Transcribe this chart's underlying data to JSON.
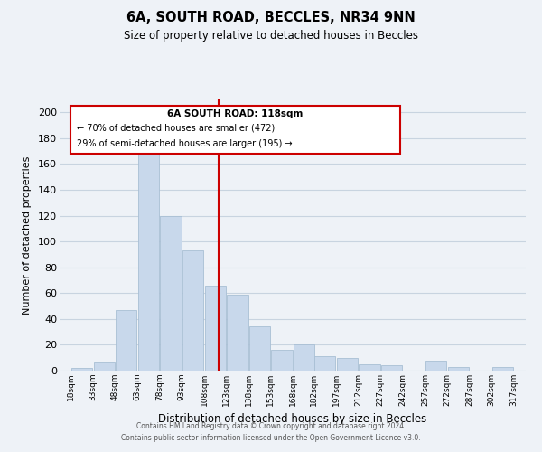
{
  "title": "6A, SOUTH ROAD, BECCLES, NR34 9NN",
  "subtitle": "Size of property relative to detached houses in Beccles",
  "xlabel": "Distribution of detached houses by size in Beccles",
  "ylabel": "Number of detached properties",
  "bar_color": "#c8d8eb",
  "bar_edge_color": "#a8bfd4",
  "grid_color": "#c8d4e0",
  "vline_color": "#cc0000",
  "vline_x": 118,
  "annotation_title": "6A SOUTH ROAD: 118sqm",
  "annotation_line1": "← 70% of detached houses are smaller (472)",
  "annotation_line2": "29% of semi-detached houses are larger (195) →",
  "annotation_box_color": "#ffffff",
  "annotation_box_edge": "#cc0000",
  "bins_left": [
    18,
    33,
    48,
    63,
    78,
    93,
    108,
    123,
    138,
    153,
    168,
    182,
    197,
    212,
    227,
    242,
    257,
    272,
    287,
    302
  ],
  "bin_width": 15,
  "counts": [
    2,
    7,
    47,
    167,
    120,
    93,
    66,
    59,
    34,
    16,
    20,
    11,
    10,
    5,
    4,
    0,
    8,
    3,
    0,
    3
  ],
  "tick_labels": [
    "18sqm",
    "33sqm",
    "48sqm",
    "63sqm",
    "78sqm",
    "93sqm",
    "108sqm",
    "123sqm",
    "138sqm",
    "153sqm",
    "168sqm",
    "182sqm",
    "197sqm",
    "212sqm",
    "227sqm",
    "242sqm",
    "257sqm",
    "272sqm",
    "287sqm",
    "302sqm",
    "317sqm"
  ],
  "tick_positions": [
    18,
    33,
    48,
    63,
    78,
    93,
    108,
    123,
    138,
    153,
    168,
    182,
    197,
    212,
    227,
    242,
    257,
    272,
    287,
    302,
    317
  ],
  "xlim": [
    10.5,
    325
  ],
  "ylim": [
    0,
    210
  ],
  "yticks": [
    0,
    20,
    40,
    60,
    80,
    100,
    120,
    140,
    160,
    180,
    200
  ],
  "footer1": "Contains HM Land Registry data © Crown copyright and database right 2024.",
  "footer2": "Contains public sector information licensed under the Open Government Licence v3.0.",
  "background_color": "#eef2f7"
}
